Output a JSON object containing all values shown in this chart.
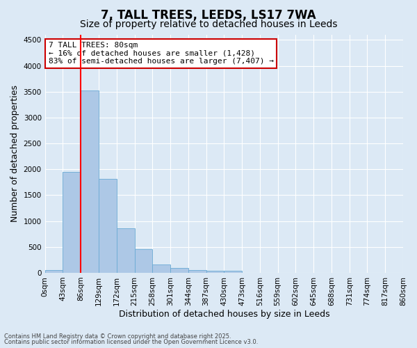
{
  "title": "7, TALL TREES, LEEDS, LS17 7WA",
  "subtitle": "Size of property relative to detached houses in Leeds",
  "xlabel": "Distribution of detached houses by size in Leeds",
  "ylabel": "Number of detached properties",
  "bar_values": [
    50,
    1950,
    3520,
    1820,
    860,
    455,
    165,
    100,
    55,
    45,
    35,
    0,
    0,
    0,
    0,
    0,
    0,
    0,
    0,
    0
  ],
  "bin_edges": [
    0,
    43,
    86,
    129,
    172,
    215,
    258,
    301,
    344,
    387,
    430,
    473,
    516,
    559,
    602,
    645,
    688,
    731,
    774,
    817,
    860
  ],
  "x_tick_labels": [
    "0sqm",
    "43sqm",
    "86sqm",
    "129sqm",
    "172sqm",
    "215sqm",
    "258sqm",
    "301sqm",
    "344sqm",
    "387sqm",
    "430sqm",
    "473sqm",
    "516sqm",
    "559sqm",
    "602sqm",
    "645sqm",
    "688sqm",
    "731sqm",
    "774sqm",
    "817sqm",
    "860sqm"
  ],
  "bar_color": "#adc8e6",
  "bar_edge_color": "#6aaad4",
  "redline_x": 86,
  "ylim": [
    0,
    4600
  ],
  "yticks": [
    0,
    500,
    1000,
    1500,
    2000,
    2500,
    3000,
    3500,
    4000,
    4500
  ],
  "annotation_line1": "7 TALL TREES: 80sqm",
  "annotation_line2": "← 16% of detached houses are smaller (1,428)",
  "annotation_line3": "83% of semi-detached houses are larger (7,407) →",
  "annotation_box_facecolor": "#ffffff",
  "annotation_box_edgecolor": "#cc0000",
  "background_color": "#dce9f5",
  "footer_line1": "Contains HM Land Registry data © Crown copyright and database right 2025.",
  "footer_line2": "Contains public sector information licensed under the Open Government Licence v3.0.",
  "title_fontsize": 12,
  "subtitle_fontsize": 10,
  "tick_fontsize": 7.5,
  "ylabel_fontsize": 9,
  "xlabel_fontsize": 9,
  "annotation_fontsize": 8,
  "footer_fontsize": 6
}
